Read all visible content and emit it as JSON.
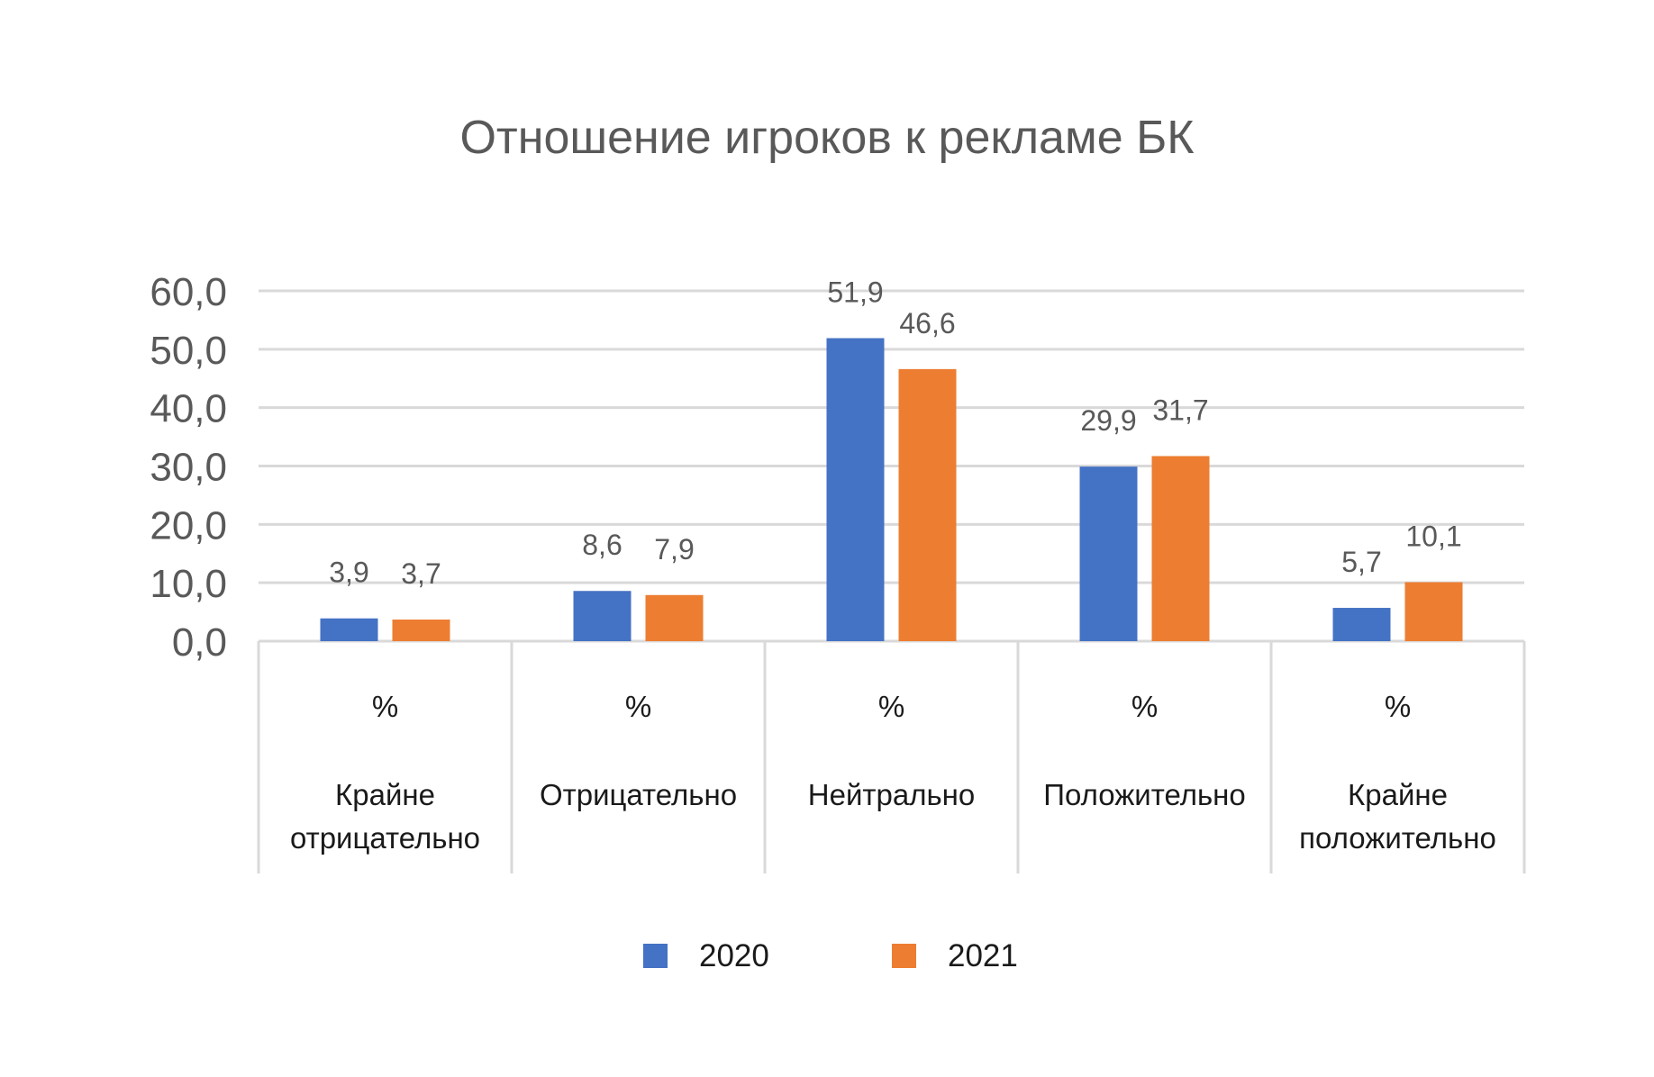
{
  "chart_data": {
    "type": "bar",
    "title": "Отношение игроков к рекламе БК",
    "xlabel": "",
    "ylabel": "",
    "ylim": [
      0,
      60
    ],
    "yticks": [
      0,
      10,
      20,
      30,
      40,
      50,
      60
    ],
    "ytick_labels": [
      "0,0",
      "10,0",
      "20,0",
      "30,0",
      "40,0",
      "50,0",
      "60,0"
    ],
    "grid": true,
    "legend_position": "bottom",
    "unit_row": [
      "%",
      "%",
      "%",
      "%",
      "%"
    ],
    "categories": [
      [
        "Крайне",
        "отрицательно"
      ],
      [
        "Отрицательно"
      ],
      [
        "Нейтрально"
      ],
      [
        "Положительно"
      ],
      [
        "Крайне",
        "положительно"
      ]
    ],
    "series": [
      {
        "name": "2020",
        "color": "#4472C4",
        "values": [
          3.9,
          8.6,
          51.9,
          29.9,
          5.7
        ],
        "labels": [
          "3,9",
          "8,6",
          "51,9",
          "29,9",
          "5,7"
        ]
      },
      {
        "name": "2021",
        "color": "#ED7D31",
        "values": [
          3.7,
          7.9,
          46.6,
          31.7,
          10.1
        ],
        "labels": [
          "3,7",
          "7,9",
          "46,6",
          "31,7",
          "10,1"
        ]
      }
    ]
  }
}
